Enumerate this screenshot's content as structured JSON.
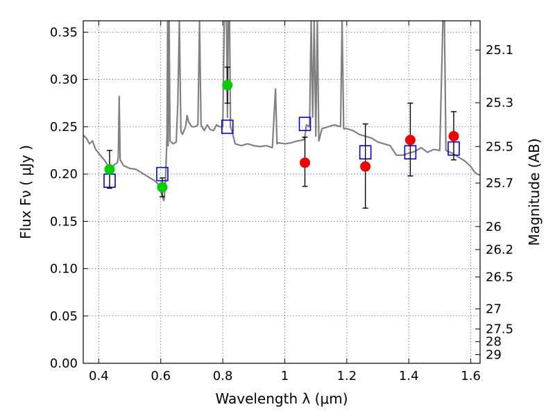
{
  "chart_data": {
    "type": "scatter",
    "title": "",
    "xlabel": "Wavelength  λ (μm)",
    "ylabel": "Flux  Fν  ( μJy )",
    "y2label": "Magnitude (AB)",
    "xlim": [
      0.35,
      1.63
    ],
    "ylim": [
      0.0,
      0.362
    ],
    "grid": true,
    "x_ticks": [
      0.4,
      0.6,
      0.8,
      1.0,
      1.2,
      1.4,
      1.6
    ],
    "x_tick_labels": [
      "0.4",
      "0.6",
      "0.8",
      "1",
      "1.2",
      "1.4",
      "1.6"
    ],
    "y_ticks": [
      0.0,
      0.05,
      0.1,
      0.15,
      0.2,
      0.25,
      0.3,
      0.35
    ],
    "y_tick_labels": [
      "0.00",
      "0.05",
      "0.10",
      "0.15",
      "0.20",
      "0.25",
      "0.30",
      "0.35"
    ],
    "mag_ticks": [
      {
        "label": "25.1",
        "flux": 0.3311
      },
      {
        "label": "25.3",
        "flux": 0.2754
      },
      {
        "label": "25.5",
        "flux": 0.2291
      },
      {
        "label": "25.7",
        "flux": 0.1905
      },
      {
        "label": "26",
        "flux": 0.1445
      },
      {
        "label": "26.2",
        "flux": 0.1202
      },
      {
        "label": "26.5",
        "flux": 0.0912
      },
      {
        "label": "27",
        "flux": 0.0575
      },
      {
        "label": "27.5",
        "flux": 0.0363
      },
      {
        "label": "28",
        "flux": 0.0229
      },
      {
        "label": "29",
        "flux": 0.0091
      }
    ],
    "series": [
      {
        "kind": "spectrum",
        "color": "#808080",
        "points": [
          [
            0.35,
            0.241
          ],
          [
            0.36,
            0.238
          ],
          [
            0.37,
            0.232
          ],
          [
            0.38,
            0.235
          ],
          [
            0.39,
            0.226
          ],
          [
            0.4,
            0.222
          ],
          [
            0.41,
            0.218
          ],
          [
            0.42,
            0.214
          ],
          [
            0.43,
            0.209
          ],
          [
            0.44,
            0.205
          ],
          [
            0.45,
            0.21
          ],
          [
            0.46,
            0.212
          ],
          [
            0.463,
            0.218
          ],
          [
            0.466,
            0.282
          ],
          [
            0.469,
            0.215
          ],
          [
            0.48,
            0.209
          ],
          [
            0.5,
            0.206
          ],
          [
            0.52,
            0.205
          ],
          [
            0.54,
            0.201
          ],
          [
            0.56,
            0.197
          ],
          [
            0.58,
            0.193
          ],
          [
            0.59,
            0.19
          ],
          [
            0.6,
            0.181
          ],
          [
            0.605,
            0.177
          ],
          [
            0.61,
            0.172
          ],
          [
            0.615,
            0.19
          ],
          [
            0.62,
            0.24
          ],
          [
            0.622,
            0.362
          ],
          [
            0.624,
            0.23
          ],
          [
            0.627,
            0.362
          ],
          [
            0.63,
            0.235
          ],
          [
            0.64,
            0.232
          ],
          [
            0.65,
            0.234
          ],
          [
            0.655,
            0.275
          ],
          [
            0.66,
            0.362
          ],
          [
            0.665,
            0.245
          ],
          [
            0.67,
            0.242
          ],
          [
            0.68,
            0.25
          ],
          [
            0.685,
            0.262
          ],
          [
            0.69,
            0.255
          ],
          [
            0.7,
            0.25
          ],
          [
            0.71,
            0.25
          ],
          [
            0.72,
            0.252
          ],
          [
            0.725,
            0.362
          ],
          [
            0.73,
            0.252
          ],
          [
            0.74,
            0.246
          ],
          [
            0.75,
            0.252
          ],
          [
            0.76,
            0.247
          ],
          [
            0.77,
            0.246
          ],
          [
            0.78,
            0.252
          ],
          [
            0.79,
            0.25
          ],
          [
            0.8,
            0.25
          ],
          [
            0.805,
            0.362
          ],
          [
            0.812,
            0.362
          ],
          [
            0.815,
            0.26
          ],
          [
            0.818,
            0.362
          ],
          [
            0.822,
            0.362
          ],
          [
            0.825,
            0.25
          ],
          [
            0.83,
            0.245
          ],
          [
            0.84,
            0.232
          ],
          [
            0.85,
            0.231
          ],
          [
            0.86,
            0.23
          ],
          [
            0.88,
            0.232
          ],
          [
            0.9,
            0.23
          ],
          [
            0.92,
            0.229
          ],
          [
            0.94,
            0.23
          ],
          [
            0.96,
            0.228
          ],
          [
            0.97,
            0.29
          ],
          [
            0.975,
            0.232
          ],
          [
            0.98,
            0.233
          ],
          [
            1.0,
            0.232
          ],
          [
            1.02,
            0.233
          ],
          [
            1.04,
            0.235
          ],
          [
            1.06,
            0.236
          ],
          [
            1.065,
            0.24
          ],
          [
            1.07,
            0.252
          ],
          [
            1.08,
            0.25
          ],
          [
            1.085,
            0.362
          ],
          [
            1.09,
            0.26
          ],
          [
            1.095,
            0.362
          ],
          [
            1.1,
            0.24
          ],
          [
            1.105,
            0.362
          ],
          [
            1.11,
            0.235
          ],
          [
            1.12,
            0.248
          ],
          [
            1.14,
            0.25
          ],
          [
            1.16,
            0.252
          ],
          [
            1.18,
            0.25
          ],
          [
            1.185,
            0.362
          ],
          [
            1.19,
            0.248
          ],
          [
            1.2,
            0.248
          ],
          [
            1.22,
            0.246
          ],
          [
            1.24,
            0.242
          ],
          [
            1.26,
            0.24
          ],
          [
            1.28,
            0.238
          ],
          [
            1.3,
            0.234
          ],
          [
            1.32,
            0.232
          ],
          [
            1.34,
            0.23
          ],
          [
            1.36,
            0.22
          ],
          [
            1.38,
            0.22
          ],
          [
            1.4,
            0.222
          ],
          [
            1.42,
            0.224
          ],
          [
            1.44,
            0.228
          ],
          [
            1.46,
            0.223
          ],
          [
            1.48,
            0.226
          ],
          [
            1.5,
            0.225
          ],
          [
            1.51,
            0.362
          ],
          [
            1.515,
            0.362
          ],
          [
            1.52,
            0.225
          ],
          [
            1.54,
            0.222
          ],
          [
            1.56,
            0.218
          ],
          [
            1.58,
            0.214
          ],
          [
            1.6,
            0.208
          ],
          [
            1.61,
            0.203
          ],
          [
            1.62,
            0.2
          ],
          [
            1.63,
            0.199
          ]
        ]
      },
      {
        "kind": "model_squares",
        "color": "#0000cc",
        "points": [
          [
            0.435,
            0.193
          ],
          [
            0.605,
            0.2
          ],
          [
            0.815,
            0.25
          ],
          [
            1.065,
            0.253
          ],
          [
            1.26,
            0.223
          ],
          [
            1.405,
            0.223
          ],
          [
            1.545,
            0.227
          ]
        ]
      },
      {
        "kind": "obs_green",
        "color": "#00cc00",
        "points": [
          {
            "x": 0.435,
            "y": 0.205,
            "lo": 0.185,
            "hi": 0.225
          },
          {
            "x": 0.605,
            "y": 0.186,
            "lo": 0.176,
            "hi": 0.196
          },
          {
            "x": 0.815,
            "y": 0.294,
            "lo": 0.275,
            "hi": 0.313
          }
        ]
      },
      {
        "kind": "obs_red",
        "color": "#ee0000",
        "points": [
          {
            "x": 1.065,
            "y": 0.212,
            "lo": 0.187,
            "hi": 0.239
          },
          {
            "x": 1.26,
            "y": 0.208,
            "lo": 0.164,
            "hi": 0.253
          },
          {
            "x": 1.405,
            "y": 0.236,
            "lo": 0.198,
            "hi": 0.275
          },
          {
            "x": 1.545,
            "y": 0.24,
            "lo": 0.215,
            "hi": 0.266
          }
        ]
      }
    ]
  }
}
